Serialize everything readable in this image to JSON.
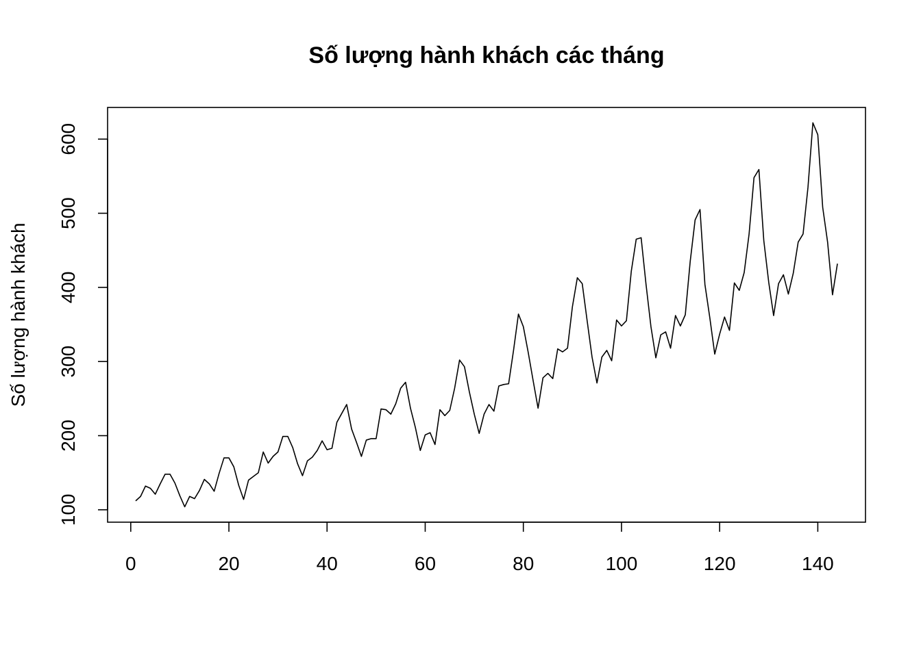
{
  "chart_data": {
    "type": "line",
    "title": "Số lượng hành khách các tháng",
    "xlabel": "",
    "ylabel": "Số lượng hành khách",
    "xlim": [
      1,
      144
    ],
    "ylim": [
      104,
      622
    ],
    "x_ticks": [
      0,
      20,
      40,
      60,
      80,
      100,
      120,
      140
    ],
    "y_ticks": [
      100,
      200,
      300,
      400,
      500,
      600
    ],
    "grid": false,
    "legend": "none",
    "line_color": "#000000",
    "series": [
      {
        "values": [
          112,
          118,
          132,
          129,
          121,
          135,
          148,
          148,
          136,
          119,
          104,
          118,
          115,
          126,
          141,
          135,
          125,
          149,
          170,
          170,
          158,
          133,
          114,
          140,
          145,
          150,
          178,
          163,
          172,
          178,
          199,
          199,
          184,
          162,
          146,
          166,
          171,
          180,
          193,
          181,
          183,
          218,
          230,
          242,
          209,
          191,
          172,
          194,
          196,
          196,
          236,
          235,
          229,
          243,
          264,
          272,
          237,
          211,
          180,
          201,
          204,
          188,
          235,
          227,
          234,
          264,
          302,
          293,
          259,
          229,
          203,
          229,
          242,
          233,
          267,
          269,
          270,
          315,
          364,
          347,
          312,
          274,
          237,
          278,
          284,
          277,
          317,
          313,
          318,
          374,
          413,
          405,
          355,
          306,
          271,
          306,
          315,
          301,
          356,
          348,
          355,
          422,
          465,
          467,
          404,
          347,
          305,
          336,
          340,
          318,
          362,
          348,
          363,
          435,
          491,
          505,
          404,
          359,
          310,
          337,
          360,
          342,
          406,
          396,
          420,
          472,
          548,
          559,
          463,
          407,
          362,
          405,
          417,
          391,
          419,
          461,
          472,
          535,
          622,
          606,
          508,
          461,
          390,
          432
        ]
      }
    ]
  }
}
